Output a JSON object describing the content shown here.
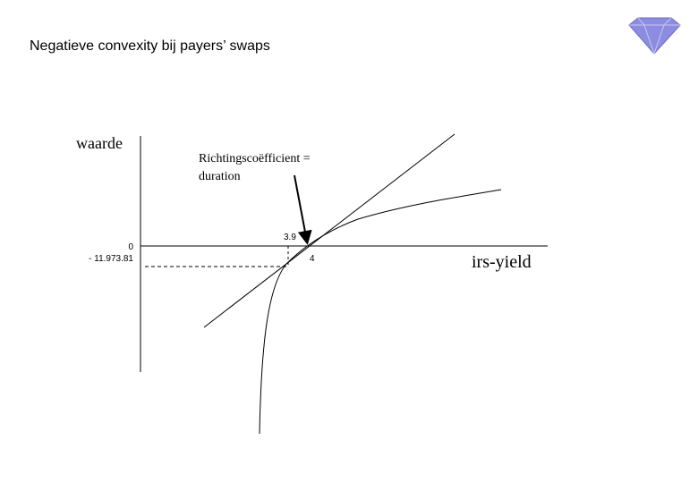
{
  "header": {
    "title": "Negatieve convexity bij payers’ swaps"
  },
  "axes": {
    "y_label": "waarde",
    "x_label": "irs-yield"
  },
  "annotation": {
    "lines": [
      "Richtingscoëfficient =",
      "duration"
    ]
  },
  "point_labels": [
    "3.9",
    "4",
    "0",
    "- 11.973.81"
  ]
}
